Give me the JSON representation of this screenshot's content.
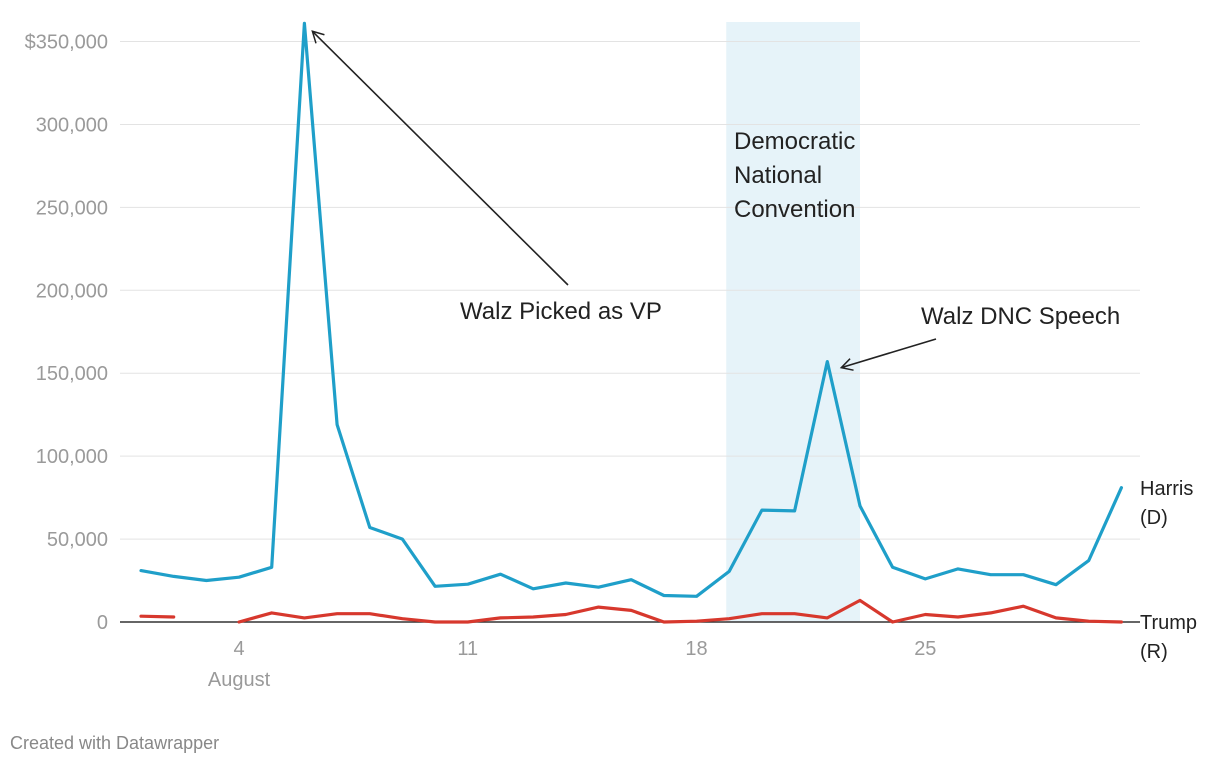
{
  "chart_data": {
    "type": "line",
    "x_unit": "August day",
    "x": [
      1,
      2,
      3,
      4,
      5,
      6,
      7,
      8,
      9,
      10,
      11,
      12,
      13,
      14,
      15,
      16,
      17,
      18,
      19,
      20,
      21,
      22,
      23,
      24,
      25,
      26,
      27,
      28,
      29,
      30,
      31
    ],
    "xticks": [
      {
        "x": 4,
        "label": "4",
        "sublabel": "August"
      },
      {
        "x": 11,
        "label": "11"
      },
      {
        "x": 18,
        "label": "18"
      },
      {
        "x": 25,
        "label": "25"
      }
    ],
    "ylim": [
      0,
      360000
    ],
    "yticks": [
      {
        "value": 0,
        "label": "0"
      },
      {
        "value": 50000,
        "label": "50,000"
      },
      {
        "value": 100000,
        "label": "100,000"
      },
      {
        "value": 150000,
        "label": "150,000"
      },
      {
        "value": 200000,
        "label": "200,000"
      },
      {
        "value": 250000,
        "label": "250,000"
      },
      {
        "value": 300000,
        "label": "300,000"
      },
      {
        "value": 350000,
        "label": "$350,000"
      }
    ],
    "grid": true,
    "series": [
      {
        "name": "Harris (D)",
        "label_lines": [
          "Harris",
          "(D)"
        ],
        "color": "#1f9fc9",
        "values": [
          31000,
          27500,
          25000,
          27000,
          33000,
          361000,
          119000,
          57000,
          50000,
          21500,
          22800,
          28800,
          20000,
          23500,
          21000,
          25500,
          16000,
          15500,
          30500,
          67500,
          67000,
          157000,
          70000,
          33000,
          26000,
          32000,
          28500,
          28500,
          22500,
          37000,
          81000
        ]
      },
      {
        "name": "Trump (R)",
        "label_lines": [
          "Trump",
          "(R)"
        ],
        "color": "#d7382d",
        "values": [
          3500,
          3000,
          null,
          0,
          5500,
          2500,
          5000,
          5000,
          2000,
          0,
          0,
          2500,
          3000,
          4500,
          9000,
          7000,
          0,
          500,
          2000,
          5000,
          5000,
          2500,
          13000,
          0,
          4500,
          3000,
          5500,
          9500,
          2500,
          500,
          0
        ]
      }
    ],
    "highlight_band": {
      "x_start": 19,
      "x_end": 23,
      "color": "#e6f3f9",
      "label_lines": [
        "Democratic",
        "National",
        "Convention"
      ]
    },
    "annotations": [
      {
        "text": "Walz Picked as VP",
        "target_x": 6,
        "target_y": 361000
      },
      {
        "text": "Walz DNC Speech",
        "target_x": 22,
        "target_y": 157000
      }
    ]
  },
  "footer": {
    "credit": "Created with Datawrapper"
  }
}
